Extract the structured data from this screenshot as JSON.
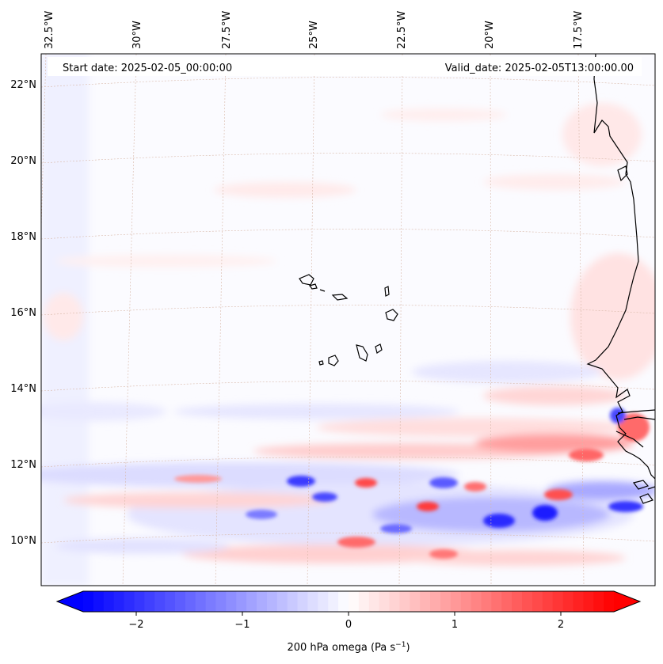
{
  "map": {
    "header": {
      "start_date": "Start date: 2025-02-05_00:00:00",
      "valid_date": "Valid_date: 2025-02-05T13:00:00.00"
    },
    "longitude_labels": [
      "32.5°W",
      "30°W",
      "27.5°W",
      "25°W",
      "22.5°W",
      "20°W",
      "17.5°W"
    ],
    "latitude_labels": [
      "22°N",
      "20°N",
      "18°N",
      "16°N",
      "14°N",
      "12°N",
      "10°N"
    ],
    "colorbar": {
      "label_main": "200 hPa omega (Pa s",
      "label_sup": "−1",
      "label_end": ")",
      "min": -2.6,
      "max": 2.6,
      "ticks": [
        "−2",
        "−1",
        "0",
        "1",
        "2"
      ],
      "tick_values": [
        -2,
        -1,
        0,
        1,
        2
      ],
      "low_color": "#0000ff",
      "mid_color": "#ffffff",
      "high_color": "#ff0000"
    },
    "coastline_color": "#000000",
    "gridline_color": "#d8b8a8"
  }
}
